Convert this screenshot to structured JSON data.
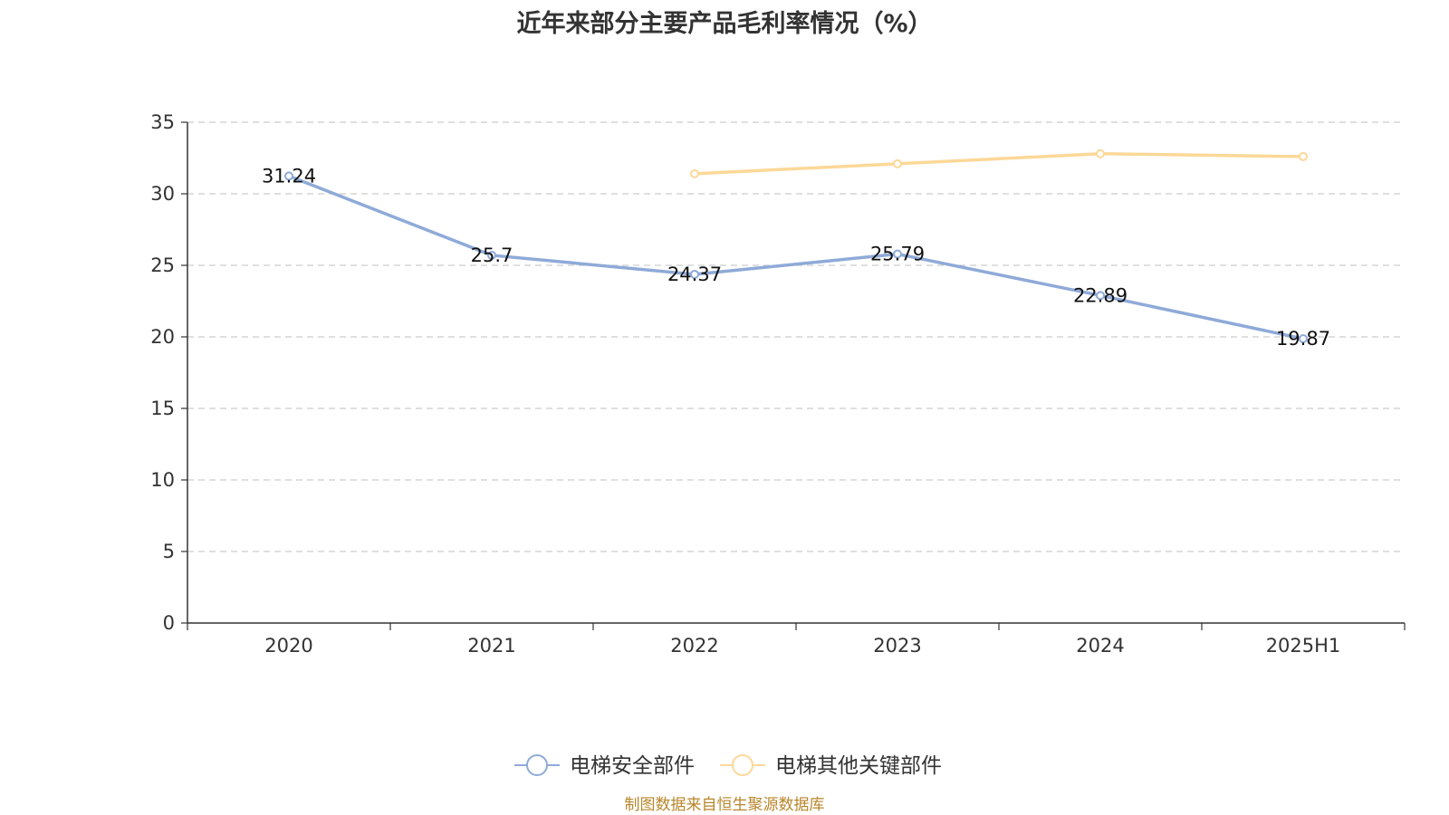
{
  "chart_data": {
    "type": "line",
    "title": "近年来部分主要产品毛利率情况（%）",
    "categories": [
      "2020",
      "2021",
      "2022",
      "2023",
      "2024",
      "2025H1"
    ],
    "series": [
      {
        "name": "电梯安全部件",
        "color": "#8eaad8",
        "values": [
          31.24,
          25.7,
          24.37,
          25.79,
          22.89,
          19.87
        ],
        "data_labels": [
          "31.24",
          "25.7",
          "24.37",
          "25.79",
          "22.89",
          "19.87"
        ]
      },
      {
        "name": "电梯其他关键部件",
        "color": "#fcd898",
        "values": [
          null,
          null,
          31.4,
          32.1,
          32.8,
          32.6
        ]
      }
    ],
    "ylim": [
      0,
      35
    ],
    "yticks": [
      "0",
      "5",
      "10",
      "15",
      "20",
      "25",
      "30",
      "35"
    ],
    "grid": true,
    "legend_position": "bottom"
  },
  "source_note": "制图数据来自恒生聚源数据库"
}
